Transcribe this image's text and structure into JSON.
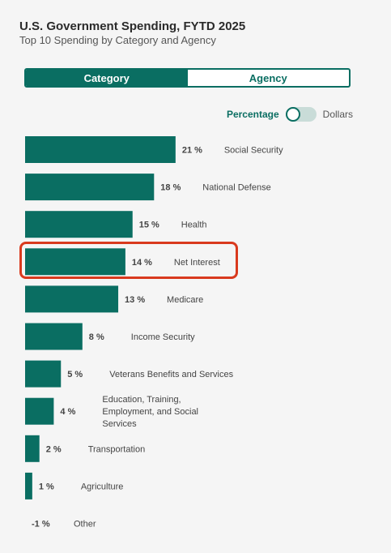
{
  "header": {
    "title": "U.S. Government Spending, FYTD 2025",
    "subtitle": "Top 10 Spending by Category and Agency"
  },
  "tabs": [
    {
      "label": "Category",
      "active": true
    },
    {
      "label": "Agency",
      "active": false
    }
  ],
  "toggle": {
    "left_label": "Percentage",
    "right_label": "Dollars",
    "selected": "Percentage"
  },
  "colors": {
    "bar": "#0a6e62",
    "highlight": "#d93a1e"
  },
  "chart_data": {
    "type": "bar",
    "orientation": "horizontal",
    "categories": [
      "Social Security",
      "National Defense",
      "Health",
      "Net Interest",
      "Medicare",
      "Income Security",
      "Veterans Benefits and Services",
      "Education, Training, Employment, and Social Services",
      "Transportation",
      "Agriculture",
      "Other"
    ],
    "values": [
      21,
      18,
      15,
      14,
      13,
      8,
      5,
      4,
      2,
      1,
      -1
    ],
    "value_labels": [
      "21 %",
      "18 %",
      "15 %",
      "14 %",
      "13 %",
      "8 %",
      "5 %",
      "4 %",
      "2 %",
      "1 %",
      "-1 %"
    ],
    "unit": "%",
    "highlighted_category": "Net Interest"
  }
}
